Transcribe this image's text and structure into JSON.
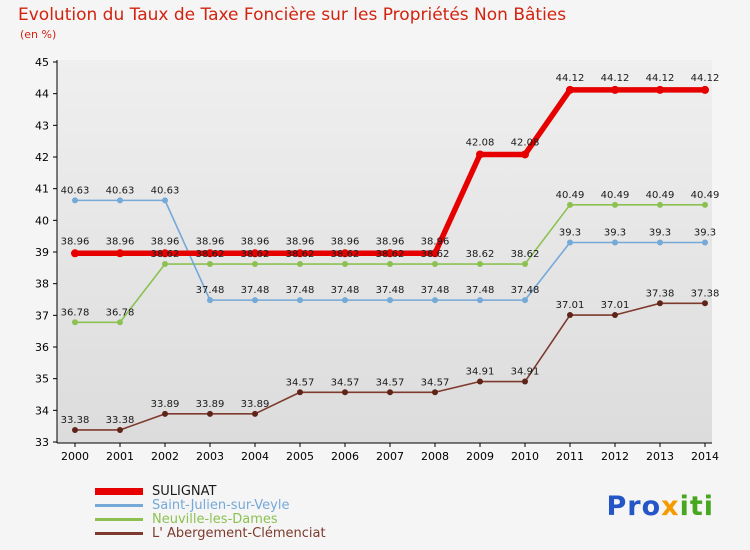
{
  "colors": {
    "title": "#d2230f",
    "axis": "#000000",
    "value_label": "#1a1a1a"
  },
  "logo": {
    "parts": [
      {
        "text": "Pro",
        "color": "#2456c8"
      },
      {
        "text": "x",
        "color": "#f59b00"
      },
      {
        "text": "iti",
        "color": "#47a81f"
      }
    ]
  },
  "chart_data": {
    "type": "line",
    "title": "Evolution du Taux de Taxe Foncière sur les Propriétés Non Bâties",
    "subtitle": "(en %)",
    "x": [
      2000,
      2001,
      2002,
      2003,
      2004,
      2005,
      2006,
      2007,
      2008,
      2009,
      2010,
      2011,
      2012,
      2013,
      2014
    ],
    "ylim": [
      33,
      45
    ],
    "yticks": [
      33,
      34,
      35,
      36,
      37,
      38,
      39,
      40,
      41,
      42,
      43,
      44,
      45
    ],
    "grid": false,
    "legend_position": "bottom-left",
    "series": [
      {
        "name": "SULIGNAT",
        "color": "#e60000",
        "legend_text_color": "#1a1a1a",
        "line_width": 5.5,
        "marker_radius": 4,
        "values": [
          38.96,
          38.96,
          38.96,
          38.96,
          38.96,
          38.96,
          38.96,
          38.96,
          38.96,
          42.08,
          42.08,
          44.12,
          44.12,
          44.12,
          44.12
        ]
      },
      {
        "name": "Saint-Julien-sur-Veyle",
        "color": "#74a9d8",
        "legend_text_color": "#74a9d8",
        "line_width": 1.6,
        "marker_radius": 3,
        "values": [
          40.63,
          40.63,
          40.63,
          37.48,
          37.48,
          37.48,
          37.48,
          37.48,
          37.48,
          37.48,
          37.48,
          39.3,
          39.3,
          39.3,
          39.3
        ]
      },
      {
        "name": "Neuville-les-Dames",
        "color": "#8cc152",
        "legend_text_color": "#8cc152",
        "line_width": 1.6,
        "marker_radius": 3,
        "values": [
          36.78,
          36.78,
          38.62,
          38.62,
          38.62,
          38.62,
          38.62,
          38.62,
          38.62,
          38.62,
          38.62,
          40.49,
          40.49,
          40.49,
          40.49
        ]
      },
      {
        "name": "L' Abergement-Clémenciat",
        "color": "#7d3a2d",
        "legend_text_color": "#7d3a2d",
        "marker_color": "#5e2418",
        "line_width": 1.6,
        "marker_radius": 3,
        "values": [
          33.38,
          33.38,
          33.89,
          33.89,
          33.89,
          34.57,
          34.57,
          34.57,
          34.57,
          34.91,
          34.91,
          37.01,
          37.01,
          37.38,
          37.38
        ]
      }
    ]
  }
}
